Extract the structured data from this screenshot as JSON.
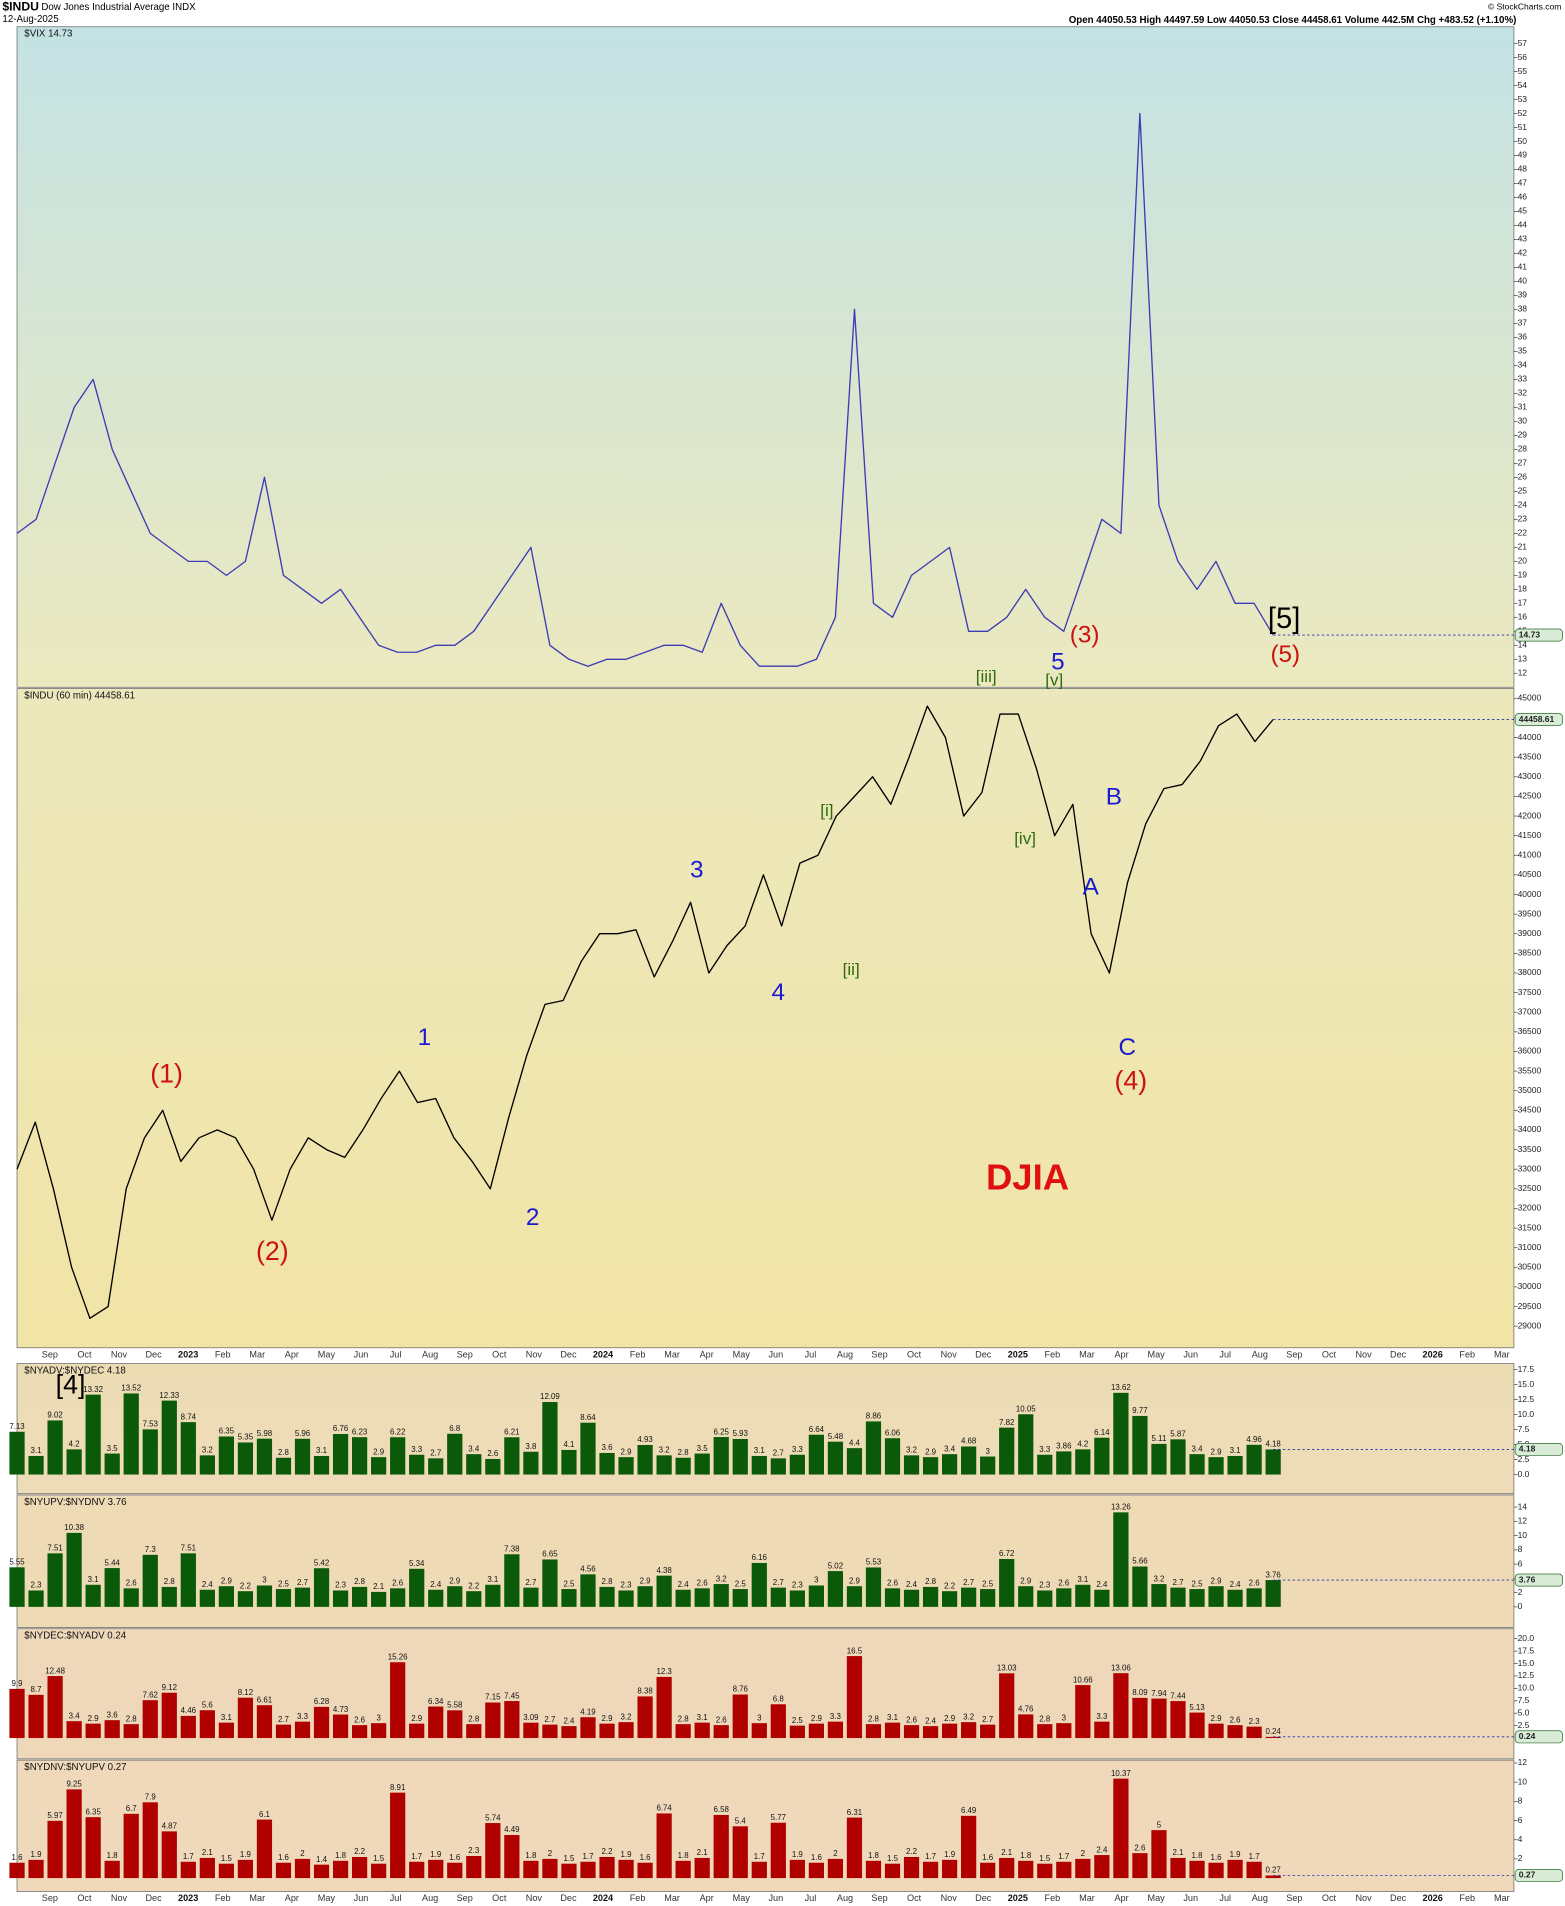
{
  "header": {
    "symbol": "$INDU",
    "name": "Dow Jones Industrial Average INDX",
    "date": "12-Aug-2025",
    "quote": "Open 44050.53  High 44497.59  Low 44050.53  Close 44458.61  Volume 442.5M  Chg +483.52 (+1.10%)",
    "credit": "© StockCharts.com"
  },
  "time_axis": [
    "Sep",
    "Oct",
    "Nov",
    "Dec",
    "2023",
    "Feb",
    "Mar",
    "Apr",
    "May",
    "Jun",
    "Jul",
    "Aug",
    "Sep",
    "Oct",
    "Nov",
    "Dec",
    "2024",
    "Feb",
    "Mar",
    "Apr",
    "May",
    "Jun",
    "Jul",
    "Aug",
    "Sep",
    "Oct",
    "Nov",
    "Dec",
    "2025",
    "Feb",
    "Mar",
    "Apr",
    "May",
    "Jun",
    "Jul",
    "Aug",
    "Sep",
    "Oct",
    "Nov",
    "Dec",
    "2026",
    "Feb",
    "Mar"
  ],
  "annotations": [
    {
      "text": "[5]",
      "color": "#000000"
    },
    {
      "text": "(3)",
      "color": "#cc1111"
    },
    {
      "text": "(5)",
      "color": "#cc1111"
    },
    {
      "text": "5",
      "color": "#1a1ad0"
    },
    {
      "text": "[iii]",
      "color": "#2e6b10"
    },
    {
      "text": "[v]",
      "color": "#2e6b10"
    },
    {
      "text": "[i]",
      "color": "#2e6b10"
    },
    {
      "text": "[ii]",
      "color": "#2e6b10"
    },
    {
      "text": "[iv]",
      "color": "#2e6b10"
    },
    {
      "text": "3",
      "color": "#1a1ad0"
    },
    {
      "text": "4",
      "color": "#1a1ad0"
    },
    {
      "text": "1",
      "color": "#1a1ad0"
    },
    {
      "text": "2",
      "color": "#1a1ad0"
    },
    {
      "text": "(1)",
      "color": "#cc1111"
    },
    {
      "text": "(2)",
      "color": "#cc1111"
    },
    {
      "text": "B",
      "color": "#1a1ad0"
    },
    {
      "text": "A",
      "color": "#1a1ad0"
    },
    {
      "text": "C",
      "color": "#1a1ad0"
    },
    {
      "text": "(4)",
      "color": "#cc1111"
    },
    {
      "text": "DJIA",
      "color": "#e01010"
    },
    {
      "text": "[4]",
      "color": "#000000"
    }
  ],
  "chart_data": [
    {
      "type": "line",
      "title": "$VIX 14.73",
      "color": "#3c3cb4",
      "values": [
        22,
        23,
        27,
        31,
        33,
        28,
        25,
        22,
        21,
        20,
        20,
        19,
        20,
        26,
        19,
        18,
        17,
        18,
        16,
        14,
        13.5,
        13.5,
        14,
        14,
        15,
        17,
        19,
        21,
        14,
        13,
        12.5,
        13,
        13,
        13.5,
        14,
        14,
        13.5,
        17,
        14,
        12.5,
        12.5,
        12.5,
        13,
        16,
        38,
        17,
        16,
        19,
        20,
        21,
        15,
        15,
        16,
        18,
        16,
        15,
        19,
        23,
        22,
        52,
        24,
        20,
        18,
        20,
        17,
        17,
        14.73
      ],
      "ylim": [
        11,
        58.2
      ],
      "yticks": [
        12,
        13,
        14,
        15,
        16,
        17,
        18,
        19,
        20,
        21,
        22,
        23,
        24,
        25,
        26,
        27,
        28,
        29,
        30,
        31,
        32,
        33,
        34,
        35,
        36,
        37,
        38,
        39,
        40,
        41,
        42,
        43,
        44,
        45,
        46,
        47,
        48,
        49,
        50,
        51,
        52,
        53,
        54,
        55,
        56,
        57
      ]
    },
    {
      "type": "line",
      "title": "$INDU (60 min) 44458.61",
      "color": "#000000",
      "values": [
        33000,
        34200,
        32500,
        30500,
        29200,
        29500,
        32500,
        33800,
        34500,
        33200,
        33800,
        34000,
        33800,
        33000,
        31700,
        33000,
        33800,
        33500,
        33300,
        34000,
        34800,
        35500,
        34700,
        34800,
        33800,
        33200,
        32500,
        34300,
        35900,
        37200,
        37300,
        38300,
        39000,
        39000,
        39100,
        37900,
        38800,
        39800,
        38000,
        38700,
        39200,
        40500,
        39200,
        40800,
        41000,
        42000,
        42500,
        43000,
        42300,
        43500,
        44800,
        44000,
        42000,
        42600,
        44600,
        44600,
        43200,
        41500,
        42300,
        39000,
        38000,
        40300,
        41800,
        42700,
        42800,
        43400,
        44300,
        44600,
        43900,
        44458.61
      ],
      "ylim": [
        28450,
        45250
      ],
      "yticks": [
        29000,
        29500,
        30000,
        30500,
        31000,
        31500,
        32000,
        32500,
        33000,
        33500,
        34000,
        34500,
        35000,
        35500,
        36000,
        36500,
        37000,
        37500,
        38000,
        38500,
        39000,
        39500,
        40000,
        40500,
        41000,
        41500,
        42000,
        42500,
        43000,
        43500,
        44000,
        44500,
        45000
      ]
    },
    {
      "type": "bar",
      "title": "$NYADV:$NYDEC 4.18",
      "color": "#0a5a0a",
      "values": [
        7.13,
        3.1,
        9.02,
        4.2,
        13.32,
        3.5,
        13.52,
        7.53,
        12.33,
        8.74,
        3.2,
        6.35,
        5.35,
        5.98,
        2.8,
        5.96,
        3.1,
        6.76,
        6.23,
        2.9,
        6.22,
        3.3,
        2.7,
        6.8,
        3.4,
        2.6,
        6.21,
        3.8,
        12.09,
        4.1,
        8.64,
        3.6,
        2.9,
        4.93,
        3.2,
        2.8,
        3.5,
        6.25,
        5.93,
        3.1,
        2.7,
        3.3,
        6.64,
        5.48,
        4.4,
        8.86,
        6.06,
        3.2,
        2.9,
        3.4,
        4.68,
        3.0,
        7.82,
        10.05,
        3.3,
        3.86,
        4.2,
        6.14,
        13.62,
        9.77,
        5.11,
        5.87,
        3.4,
        2.9,
        3.1,
        4.96,
        4.18
      ],
      "ylim": [
        -3.2,
        18.5
      ],
      "yticks": [
        {
          "value": 0,
          "label": "0.0"
        },
        {
          "value": 2.5,
          "label": "2.5"
        },
        {
          "value": 5,
          "label": "5.0"
        },
        {
          "value": 7.5,
          "label": "7.5"
        },
        {
          "value": 10,
          "label": "10.0"
        },
        {
          "value": 12.5,
          "label": "12.5"
        },
        {
          "value": 15,
          "label": "15.0"
        },
        {
          "value": 17.5,
          "label": "17.5"
        }
      ]
    },
    {
      "type": "bar",
      "title": "$NYUPV:$NYDNV 3.76",
      "color": "#0a5a0a",
      "values": [
        5.55,
        2.3,
        7.51,
        10.38,
        3.1,
        5.44,
        2.6,
        7.3,
        2.8,
        7.51,
        2.4,
        2.9,
        2.2,
        3.0,
        2.5,
        2.7,
        5.42,
        2.3,
        2.8,
        2.1,
        2.6,
        5.34,
        2.4,
        2.9,
        2.2,
        3.1,
        7.38,
        2.7,
        6.65,
        2.5,
        4.56,
        2.8,
        2.3,
        2.9,
        4.38,
        2.4,
        2.6,
        3.2,
        2.5,
        6.16,
        2.7,
        2.3,
        3.0,
        5.02,
        2.9,
        5.53,
        2.6,
        2.4,
        2.8,
        2.2,
        2.7,
        2.5,
        6.72,
        2.9,
        2.3,
        2.6,
        3.1,
        2.4,
        13.26,
        5.66,
        3.2,
        2.7,
        2.5,
        2.9,
        2.4,
        2.6,
        3.76
      ],
      "ylim": [
        -2.9,
        15.7
      ],
      "yticks": [
        0,
        2,
        4,
        6,
        8,
        10,
        12,
        14
      ]
    },
    {
      "type": "bar",
      "title": "$NYDEC:$NYADV 0.24",
      "color": "#b00000",
      "values": [
        9.9,
        8.7,
        12.48,
        3.4,
        2.9,
        3.6,
        2.8,
        7.62,
        9.12,
        4.46,
        5.6,
        3.1,
        8.12,
        6.61,
        2.7,
        3.3,
        6.28,
        4.73,
        2.6,
        3.0,
        15.26,
        2.9,
        6.34,
        5.58,
        2.8,
        7.15,
        7.45,
        3.09,
        2.7,
        2.4,
        4.19,
        2.9,
        3.2,
        8.38,
        12.3,
        2.8,
        3.1,
        2.6,
        8.76,
        3.0,
        6.8,
        2.5,
        2.9,
        3.3,
        16.5,
        2.8,
        3.1,
        2.6,
        2.4,
        2.9,
        3.2,
        2.7,
        13.03,
        4.76,
        2.8,
        3.0,
        10.66,
        3.3,
        13.06,
        8.09,
        7.94,
        7.44,
        5.13,
        2.9,
        2.6,
        2.3,
        0.24
      ],
      "ylim": [
        -4.2,
        22
      ],
      "yticks": [
        {
          "value": 2.5,
          "label": "2.5"
        },
        {
          "value": 5,
          "label": "5.0"
        },
        {
          "value": 7.5,
          "label": "7.5"
        },
        {
          "value": 10,
          "label": "10.0"
        },
        {
          "value": 12.5,
          "label": "12.5"
        },
        {
          "value": 15,
          "label": "15.0"
        },
        {
          "value": 17.5,
          "label": "17.5"
        },
        {
          "value": 20,
          "label": "20.0"
        }
      ]
    },
    {
      "type": "bar",
      "title": "$NYDNV:$NYUPV 0.27",
      "color": "#b00000",
      "values": [
        1.6,
        1.9,
        5.97,
        9.25,
        6.35,
        1.8,
        6.7,
        7.9,
        4.87,
        1.7,
        2.1,
        1.5,
        1.9,
        6.1,
        1.6,
        2.0,
        1.4,
        1.8,
        2.2,
        1.5,
        8.91,
        1.7,
        1.9,
        1.6,
        2.3,
        5.74,
        4.49,
        1.8,
        2.0,
        1.5,
        1.7,
        2.2,
        1.9,
        1.6,
        6.74,
        1.8,
        2.1,
        6.58,
        5.4,
        1.7,
        5.77,
        1.9,
        1.6,
        2.0,
        6.31,
        1.8,
        1.5,
        2.2,
        1.7,
        1.9,
        6.49,
        1.6,
        2.1,
        1.8,
        1.5,
        1.7,
        2.0,
        2.4,
        10.37,
        2.6,
        5.0,
        2.1,
        1.8,
        1.6,
        1.9,
        1.7,
        0.27
      ],
      "ylim": [
        -1.4,
        12.3
      ],
      "yticks": [
        2,
        4,
        6,
        8,
        10,
        12
      ]
    }
  ]
}
